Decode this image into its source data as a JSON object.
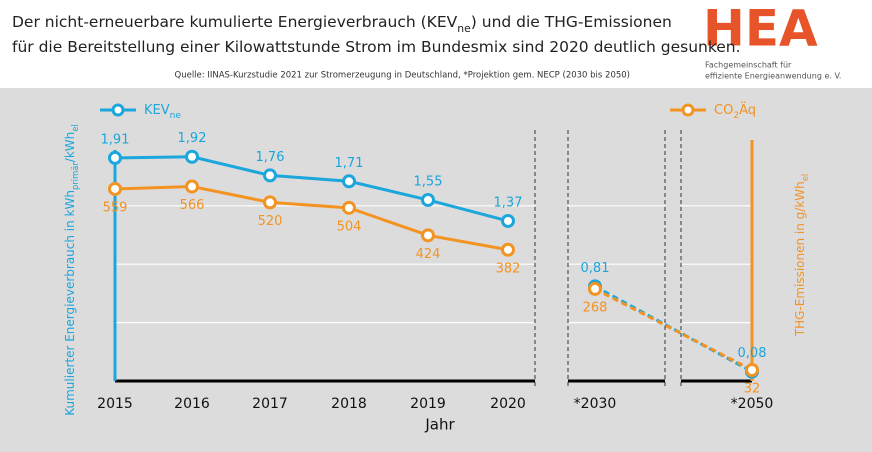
{
  "chart_data": {
    "type": "line",
    "title_lines": [
      [
        {
          "text": "Der nicht-erneuerbare kumulierte Energieverbrauch (KEV"
        },
        {
          "text": "ne",
          "sub": true
        },
        {
          "text": ") und die THG-Emissionen"
        }
      ],
      [
        {
          "text": "für die Bereitstellung einer Kilowattstunde Strom im Bundesmix sind 2020 deutlich gesunken."
        }
      ]
    ],
    "source": "Quelle: IINAS-Kurzstudie 2021 zur Stromerzeugung in Deutschland, *Projektion gem. NECP (2030 bis 2050)",
    "logo": {
      "title": "HEA",
      "lines": [
        "Fachgemeinschaft für",
        "effiziente Energieanwendung e. V."
      ]
    },
    "xlabel": "Jahr",
    "ylabel": [
      {
        "text": "Kumulierter Energieverbrauch in kWh"
      },
      {
        "text": "primär",
        "sub": true
      },
      {
        "text": "/kWh"
      },
      {
        "text": "el",
        "sub": true
      }
    ],
    "y2label": [
      {
        "text": "THG-Emissionen in g/kWh"
      },
      {
        "text": "el",
        "sub": true
      }
    ],
    "categories": [
      "2015",
      "2016",
      "2017",
      "2018",
      "2019",
      "2020",
      "*2030",
      "*2050"
    ],
    "ylim": [
      0,
      2.5
    ],
    "yticks": [
      0.5,
      1,
      1.5
    ],
    "y2lim": [
      0,
      850
    ],
    "grid": true,
    "series": [
      {
        "name_parts": [
          {
            "text": "KEV"
          },
          {
            "text": "ne",
            "sub": true
          }
        ],
        "color": "#1ba6dc",
        "values": [
          1.91,
          1.92,
          1.76,
          1.71,
          1.55,
          1.37,
          0.81,
          0.08
        ],
        "value_labels": [
          "1,91",
          "1,92",
          "1,76",
          "1,71",
          "1,55",
          "1,37",
          "0,81",
          "0,08"
        ]
      },
      {
        "name_parts": [
          {
            "text": "CO"
          },
          {
            "text": "2",
            "sub": true
          },
          {
            "text": "Äq"
          }
        ],
        "color": "#f39322",
        "axis": "y2",
        "values": [
          559,
          566,
          520,
          504,
          424,
          382,
          268,
          32
        ]
      }
    ]
  }
}
